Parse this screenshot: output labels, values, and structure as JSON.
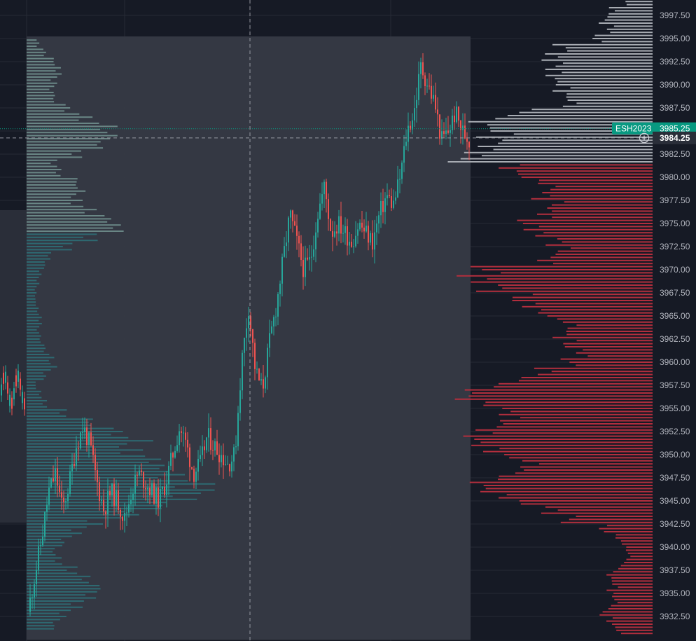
{
  "symbol": "ESH2023",
  "last_price_label": "3985.25",
  "crosshair_price_label": "3984.25",
  "colors": {
    "background": "#161a25",
    "panel": "#363a45",
    "panel_left": "#2a2e39",
    "grid": "#262a35",
    "up": "#26a69a",
    "down": "#ef5350",
    "vp_upper": "#6f8f8d",
    "vp_lower": "#2e6f77",
    "rvp_sell": "#a8acb3",
    "rvp_buy": "#b22e3d",
    "badge": "#089981",
    "axis_text": "#b2b5be"
  },
  "chart_data": {
    "type": "candlestick",
    "y_axis": {
      "range": [
        3930.5,
        3999.5
      ],
      "ticks": [
        "3997.50",
        "3995.00",
        "3992.50",
        "3990.00",
        "3987.50",
        "3985.00",
        "3982.50",
        "3980.00",
        "3977.50",
        "3975.00",
        "3972.50",
        "3970.00",
        "3967.50",
        "3965.00",
        "3962.50",
        "3960.00",
        "3957.50",
        "3955.00",
        "3952.50",
        "3950.00",
        "3947.50",
        "3945.00",
        "3942.50",
        "3940.00",
        "3937.50",
        "3935.00",
        "3932.50"
      ]
    },
    "last_price": 3985.25,
    "crosshair_price": 3984.25,
    "session_range": {
      "high": 3995.0,
      "low": 3930.5
    },
    "candle_path": [
      [
        0,
        3933
      ],
      [
        6,
        3937
      ],
      [
        12,
        3941
      ],
      [
        18,
        3946
      ],
      [
        24,
        3948
      ],
      [
        30,
        3944
      ],
      [
        36,
        3947
      ],
      [
        42,
        3951
      ],
      [
        48,
        3953
      ],
      [
        54,
        3951
      ],
      [
        60,
        3947
      ],
      [
        66,
        3944
      ],
      [
        72,
        3946
      ],
      [
        78,
        3945
      ],
      [
        84,
        3943
      ],
      [
        90,
        3946
      ],
      [
        96,
        3948
      ],
      [
        102,
        3947
      ],
      [
        108,
        3946
      ],
      [
        114,
        3945
      ],
      [
        120,
        3947
      ],
      [
        126,
        3950
      ],
      [
        132,
        3953
      ],
      [
        138,
        3951
      ],
      [
        144,
        3948
      ],
      [
        150,
        3949
      ],
      [
        156,
        3952
      ],
      [
        162,
        3951
      ],
      [
        168,
        3950
      ],
      [
        174,
        3949
      ],
      [
        180,
        3950
      ],
      [
        186,
        3960
      ],
      [
        192,
        3966
      ],
      [
        198,
        3959
      ],
      [
        204,
        3957
      ],
      [
        210,
        3962
      ],
      [
        216,
        3966
      ],
      [
        222,
        3971
      ],
      [
        228,
        3976
      ],
      [
        234,
        3973
      ],
      [
        240,
        3970
      ],
      [
        246,
        3971
      ],
      [
        252,
        3976
      ],
      [
        258,
        3979
      ],
      [
        264,
        3974
      ],
      [
        270,
        3975
      ],
      [
        276,
        3974
      ],
      [
        282,
        3973
      ],
      [
        288,
        3975
      ],
      [
        294,
        3974
      ],
      [
        300,
        3973
      ],
      [
        306,
        3976
      ],
      [
        312,
        3978
      ],
      [
        318,
        3977
      ],
      [
        324,
        3980
      ],
      [
        330,
        3985
      ],
      [
        336,
        3987
      ],
      [
        342,
        3992
      ],
      [
        348,
        3990
      ],
      [
        354,
        3988
      ],
      [
        360,
        3984
      ],
      [
        366,
        3985
      ],
      [
        372,
        3987
      ],
      [
        378,
        3985
      ],
      [
        384,
        3984
      ]
    ],
    "left_profile": [
      [
        3931.5,
        60
      ],
      [
        3932.5,
        80
      ],
      [
        3933.5,
        110
      ],
      [
        3934.5,
        140
      ],
      [
        3935.5,
        160
      ],
      [
        3936.5,
        130
      ],
      [
        3937.5,
        100
      ],
      [
        3938.5,
        70
      ],
      [
        3939.5,
        60
      ],
      [
        3940.5,
        80
      ],
      [
        3941.5,
        110
      ],
      [
        3942.5,
        150
      ],
      [
        3943.5,
        230
      ],
      [
        3944.5,
        300
      ],
      [
        3945.5,
        350
      ],
      [
        3946.5,
        370
      ],
      [
        3947.5,
        320
      ],
      [
        3948.5,
        300
      ],
      [
        3949.5,
        280
      ],
      [
        3950.5,
        230
      ],
      [
        3951.5,
        250
      ],
      [
        3952.5,
        200
      ],
      [
        3953.5,
        140
      ],
      [
        3954.5,
        80
      ],
      [
        3955.5,
        40
      ],
      [
        3956.5,
        30
      ],
      [
        3957.5,
        20
      ],
      [
        3958.5,
        40
      ],
      [
        3959.5,
        60
      ],
      [
        3960.5,
        55
      ],
      [
        3961.5,
        40
      ],
      [
        3962.5,
        30
      ],
      [
        3963.5,
        25
      ],
      [
        3964.5,
        30
      ],
      [
        3965.5,
        25
      ],
      [
        3966.5,
        20
      ],
      [
        3967.5,
        20
      ],
      [
        3968.5,
        25
      ],
      [
        3969.5,
        30
      ],
      [
        3970.5,
        40
      ],
      [
        3971.5,
        50
      ],
      [
        3972.5,
        90
      ],
      [
        3973.5,
        140
      ],
      [
        3974.5,
        200
      ],
      [
        3975.5,
        180
      ],
      [
        3976.5,
        140
      ],
      [
        3977.5,
        110
      ],
      [
        3978.5,
        120
      ],
      [
        3979.5,
        110
      ],
      [
        3980.5,
        70
      ],
      [
        3981.5,
        60
      ],
      [
        3982.5,
        110
      ],
      [
        3983.5,
        160
      ],
      [
        3984.5,
        190
      ],
      [
        3985.5,
        180
      ],
      [
        3986.5,
        130
      ],
      [
        3987.5,
        90
      ],
      [
        3988.5,
        60
      ],
      [
        3989.5,
        55
      ],
      [
        3990.5,
        60
      ],
      [
        3991.5,
        70
      ],
      [
        3992.5,
        60
      ],
      [
        3993.5,
        40
      ],
      [
        3994.5,
        25
      ]
    ],
    "right_profile": [
      [
        3931,
        50
      ],
      [
        3932,
        60
      ],
      [
        3933,
        70
      ],
      [
        3934,
        55
      ],
      [
        3935,
        60
      ],
      [
        3936,
        55
      ],
      [
        3937,
        60
      ],
      [
        3938,
        45
      ],
      [
        3939,
        35
      ],
      [
        3940,
        40
      ],
      [
        3941,
        50
      ],
      [
        3942,
        70
      ],
      [
        3943,
        120
      ],
      [
        3944,
        150
      ],
      [
        3945,
        200
      ],
      [
        3946,
        230
      ],
      [
        3947,
        240
      ],
      [
        3948,
        200
      ],
      [
        3949,
        180
      ],
      [
        3950,
        220
      ],
      [
        3951,
        240
      ],
      [
        3952,
        250
      ],
      [
        3953,
        230
      ],
      [
        3954,
        210
      ],
      [
        3955,
        220
      ],
      [
        3956,
        260
      ],
      [
        3957,
        250
      ],
      [
        3958,
        200
      ],
      [
        3959,
        160
      ],
      [
        3960,
        120
      ],
      [
        3961,
        100
      ],
      [
        3962,
        120
      ],
      [
        3963,
        130
      ],
      [
        3964,
        120
      ],
      [
        3965,
        150
      ],
      [
        3966,
        170
      ],
      [
        3967,
        190
      ],
      [
        3968,
        230
      ],
      [
        3969,
        260
      ],
      [
        3970,
        240
      ],
      [
        3971,
        150
      ],
      [
        3972,
        130
      ],
      [
        3973,
        140
      ],
      [
        3974,
        170
      ],
      [
        3975,
        180
      ],
      [
        3976,
        150
      ],
      [
        3977,
        140
      ],
      [
        3978,
        160
      ],
      [
        3979,
        150
      ],
      [
        3980,
        180
      ],
      [
        3981,
        200
      ],
      [
        3982,
        270
      ],
      [
        3983,
        250
      ],
      [
        3984,
        230
      ],
      [
        3985,
        220
      ],
      [
        3986,
        240
      ],
      [
        3987,
        190
      ],
      [
        3988,
        120
      ],
      [
        3989,
        130
      ],
      [
        3990,
        130
      ],
      [
        3991,
        140
      ],
      [
        3992,
        140
      ],
      [
        3993,
        150
      ],
      [
        3994,
        130
      ],
      [
        3995,
        80
      ],
      [
        3996,
        60
      ],
      [
        3997,
        70
      ],
      [
        3998,
        60
      ],
      [
        3999,
        40
      ]
    ],
    "right_profile_split_price": 3981.5
  }
}
